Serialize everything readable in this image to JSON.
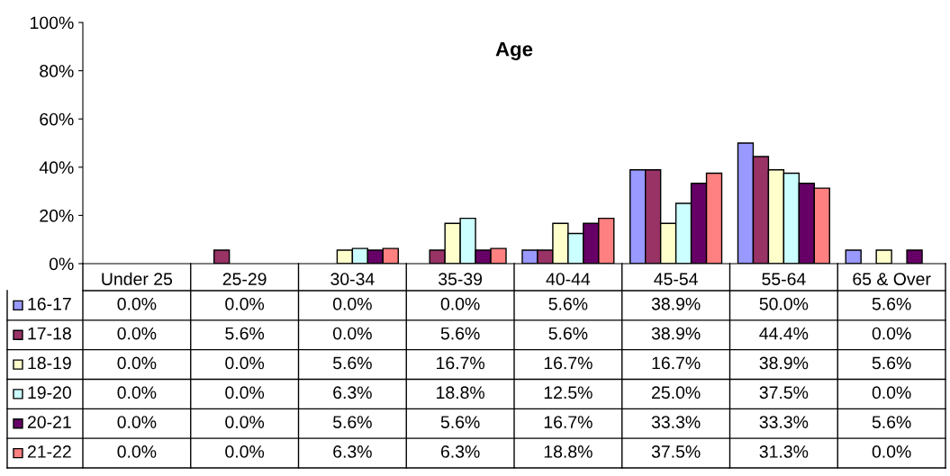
{
  "chart_data": {
    "type": "bar",
    "title": "Age",
    "categories": [
      "Under 25",
      "25-29",
      "30-34",
      "35-39",
      "40-44",
      "45-54",
      "55-64",
      "65 & Over"
    ],
    "series": [
      {
        "name": "16-17",
        "color": "#9999ff",
        "values": [
          0.0,
          0.0,
          0.0,
          0.0,
          5.6,
          38.9,
          50.0,
          5.6
        ],
        "value_labels": [
          "0.0%",
          "0.0%",
          "0.0%",
          "0.0%",
          "5.6%",
          "38.9%",
          "50.0%",
          "5.6%"
        ]
      },
      {
        "name": "17-18",
        "color": "#993366",
        "values": [
          0.0,
          5.6,
          0.0,
          5.6,
          5.6,
          38.9,
          44.4,
          0.0
        ],
        "value_labels": [
          "0.0%",
          "5.6%",
          "0.0%",
          "5.6%",
          "5.6%",
          "38.9%",
          "44.4%",
          "0.0%"
        ]
      },
      {
        "name": "18-19",
        "color": "#ffffcc",
        "values": [
          0.0,
          0.0,
          5.6,
          16.7,
          16.7,
          16.7,
          38.9,
          5.6
        ],
        "value_labels": [
          "0.0%",
          "0.0%",
          "5.6%",
          "16.7%",
          "16.7%",
          "16.7%",
          "38.9%",
          "5.6%"
        ]
      },
      {
        "name": "19-20",
        "color": "#ccffff",
        "values": [
          0.0,
          0.0,
          6.3,
          18.8,
          12.5,
          25.0,
          37.5,
          0.0
        ],
        "value_labels": [
          "0.0%",
          "0.0%",
          "6.3%",
          "18.8%",
          "12.5%",
          "25.0%",
          "37.5%",
          "0.0%"
        ]
      },
      {
        "name": "20-21",
        "color": "#660066",
        "values": [
          0.0,
          0.0,
          5.6,
          5.6,
          16.7,
          33.3,
          33.3,
          5.6
        ],
        "value_labels": [
          "0.0%",
          "0.0%",
          "5.6%",
          "5.6%",
          "16.7%",
          "33.3%",
          "33.3%",
          "5.6%"
        ]
      },
      {
        "name": "21-22",
        "color": "#ff8080",
        "values": [
          0.0,
          0.0,
          6.3,
          6.3,
          18.8,
          37.5,
          31.3,
          0.0
        ],
        "value_labels": [
          "0.0%",
          "0.0%",
          "6.3%",
          "6.3%",
          "18.8%",
          "37.5%",
          "31.3%",
          "0.0%"
        ]
      }
    ],
    "ylim": [
      0,
      100
    ],
    "yticks": [
      {
        "value": 0,
        "label": "0%"
      },
      {
        "value": 20,
        "label": "20%"
      },
      {
        "value": 40,
        "label": "40%"
      },
      {
        "value": 60,
        "label": "60%"
      },
      {
        "value": 80,
        "label": "80%"
      },
      {
        "value": 100,
        "label": "100%"
      }
    ],
    "grid": false,
    "legend": "bottom"
  }
}
